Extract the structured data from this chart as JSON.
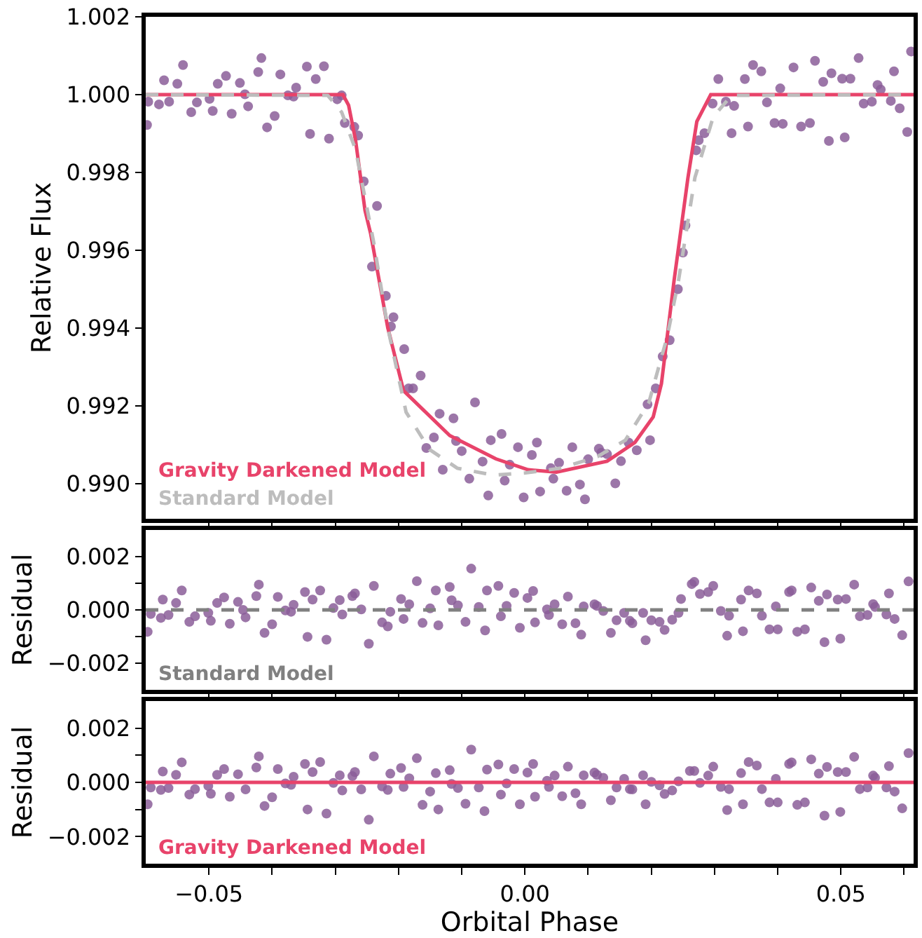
{
  "chart_data": [
    {
      "type": "scatter",
      "ylabel": "Relative Flux",
      "xlim": [
        -0.06,
        0.0615
      ],
      "ylim": [
        0.9891,
        1.002
      ],
      "xticks": [
        {
          "value": -0.05,
          "label": null
        },
        {
          "value": -0.04,
          "label": null
        },
        {
          "value": -0.03,
          "label": null
        },
        {
          "value": -0.02,
          "label": null
        },
        {
          "value": -0.01,
          "label": null
        },
        {
          "value": 0,
          "label": null
        },
        {
          "value": 0.01,
          "label": null
        },
        {
          "value": 0.02,
          "label": null
        },
        {
          "value": 0.03,
          "label": null
        },
        {
          "value": 0.04,
          "label": null
        },
        {
          "value": 0.05,
          "label": null
        },
        {
          "value": 0.06,
          "label": null
        }
      ],
      "yticks": [
        {
          "value": 0.99,
          "label": "0.990"
        },
        {
          "value": 0.992,
          "label": "0.992"
        },
        {
          "value": 0.994,
          "label": "0.994"
        },
        {
          "value": 0.996,
          "label": "0.996"
        },
        {
          "value": 0.998,
          "label": "0.998"
        },
        {
          "value": 1.0,
          "label": "1.000"
        },
        {
          "value": 1.002,
          "label": "1.002"
        }
      ],
      "tick_labels": "y",
      "legend": "bottom left",
      "grid": false,
      "series": [
        {
          "marker": "circle",
          "color": "#8b5e99",
          "x": [
            -0.0598,
            -0.0596,
            -0.0579,
            -0.0571,
            -0.0563,
            -0.055,
            -0.0541,
            -0.0528,
            -0.0519,
            -0.0499,
            -0.0494,
            -0.0486,
            -0.0473,
            -0.0464,
            -0.0451,
            -0.0443,
            -0.0438,
            -0.0422,
            -0.0417,
            -0.0408,
            -0.0396,
            -0.0387,
            -0.0375,
            -0.0366,
            -0.0362,
            -0.0345,
            -0.034,
            -0.0331,
            -0.0318,
            -0.031,
            -0.0297,
            -0.029,
            -0.0285,
            -0.027,
            -0.0264,
            -0.0255,
            -0.0234,
            -0.0242,
            -0.022,
            -0.0208,
            -0.0212,
            -0.0191,
            -0.0184,
            -0.0177,
            -0.0165,
            -0.0156,
            -0.0144,
            -0.0135,
            -0.013,
            -0.0113,
            -0.0109,
            -0.01,
            -0.0088,
            -0.0079,
            -0.0067,
            -0.0058,
            -0.0054,
            -0.0037,
            -0.0032,
            -0.0024,
            -0.0011,
            -0.0002,
            0.0011,
            0.0019,
            0.0024,
            0.0041,
            0.0045,
            0.0054,
            0.0066,
            0.0075,
            0.0087,
            0.0095,
            0.01,
            0.0117,
            0.0121,
            0.013,
            0.0143,
            0.0152,
            0.0164,
            0.0177,
            0.0198,
            0.0194,
            0.0207,
            0.0218,
            0.0229,
            0.0242,
            0.025,
            0.0254,
            0.0271,
            0.0275,
            0.0284,
            0.0297,
            0.0306,
            0.0318,
            0.0327,
            0.0331,
            0.0348,
            0.0353,
            0.0361,
            0.0374,
            0.0383,
            0.0395,
            0.0404,
            0.0408,
            0.0425,
            0.0437,
            0.0451,
            0.0459,
            0.0472,
            0.0481,
            0.0485,
            0.0502,
            0.0506,
            0.0515,
            0.0528,
            0.0536,
            0.0549,
            0.0558,
            0.0563,
            0.0579,
            0.0584,
            0.0593,
            0.0605,
            0.0611
          ],
          "values": [
            0.99922,
            0.99982,
            0.99975,
            1.00037,
            0.99982,
            1.00028,
            1.00076,
            0.99955,
            0.9998,
            0.99989,
            0.99958,
            1.00028,
            1.00048,
            0.99951,
            1.0003,
            1.00001,
            0.9997,
            1.00058,
            1.00094,
            0.99916,
            0.99945,
            1.00052,
            0.99998,
            0.99995,
            1.00018,
            1.00072,
            0.99899,
            1.0004,
            1.00073,
            0.99887,
            0.99988,
            0.99998,
            0.99927,
            0.99917,
            0.99895,
            0.99777,
            0.99714,
            0.99558,
            0.99483,
            0.99428,
            0.99404,
            0.99346,
            0.99245,
            0.99245,
            0.99278,
            0.99092,
            0.99119,
            0.9918,
            0.99036,
            0.99168,
            0.9911,
            0.99084,
            0.99013,
            0.99209,
            0.99057,
            0.9897,
            0.99112,
            0.99128,
            0.99008,
            0.99049,
            0.99094,
            0.98965,
            0.99074,
            0.99106,
            0.9898,
            0.9904,
            0.99013,
            0.99054,
            0.98982,
            0.99094,
            0.98998,
            0.9896,
            0.99063,
            0.9909,
            0.9908,
            0.99076,
            0.99001,
            0.99058,
            0.99106,
            0.99086,
            0.99112,
            0.99204,
            0.99245,
            0.99327,
            0.99369,
            0.995,
            0.99594,
            0.99664,
            0.99857,
            0.99883,
            0.99901,
            0.99977,
            1.0004,
            0.99982,
            0.99901,
            0.99971,
            1.0004,
            0.99918,
            1.00076,
            1.0006,
            0.9998,
            0.99927,
            1.00016,
            0.99925,
            1.0007,
            0.99918,
            0.99927,
            1.00087,
            1.00033,
            0.99881,
            1.00055,
            1.00041,
            0.9989,
            1.00041,
            1.00094,
            0.99977,
            0.99982,
            1.00025,
            1.00013,
            0.99984,
            1.0006,
            0.99965,
            0.99904,
            1.00111
          ]
        },
        {
          "type": "line",
          "name": "Gravity Darkened Model",
          "color": "#e8436a",
          "line_style": "solid",
          "x": [
            -0.06,
            -0.0288,
            -0.0279,
            -0.0268,
            -0.0253,
            -0.0244,
            -0.0217,
            -0.0192,
            -0.0119,
            -0.0046,
            0.0005,
            0.005,
            0.013,
            0.0174,
            0.0203,
            0.0216,
            0.0236,
            0.0258,
            0.0272,
            0.0294,
            0.0615
          ],
          "values": [
            1.0,
            1.0,
            0.99973,
            0.99883,
            0.99702,
            0.99642,
            0.99401,
            0.99239,
            0.99124,
            0.99064,
            0.99036,
            0.9903,
            0.99058,
            0.99106,
            0.99172,
            0.99257,
            0.99522,
            0.99787,
            0.99931,
            1.0,
            1.0
          ]
        },
        {
          "type": "line",
          "name": "Standard Model",
          "color": "#bdbdbd",
          "line_style": "dashed",
          "x": [
            -0.06,
            -0.0312,
            -0.029,
            -0.0268,
            -0.0239,
            -0.0217,
            -0.0188,
            -0.0151,
            -0.0107,
            -0.0049,
            0.0001,
            0.0057,
            0.0115,
            0.0159,
            0.0196,
            0.0225,
            0.0243,
            0.0269,
            0.0298,
            0.0327,
            0.0615
          ],
          "values": [
            1.0,
            0.99998,
            0.99955,
            0.99859,
            0.99618,
            0.99401,
            0.99184,
            0.99088,
            0.9904,
            0.99022,
            0.99028,
            0.9904,
            0.9907,
            0.99112,
            0.99208,
            0.99377,
            0.99522,
            0.99787,
            0.99943,
            0.99998,
            1.0
          ]
        }
      ]
    },
    {
      "type": "scatter",
      "ylabel": "Residual",
      "xlim": [
        -0.06,
        0.0615
      ],
      "ylim": [
        -0.003,
        0.003
      ],
      "xticks": [
        {
          "value": -0.05,
          "label": null
        },
        {
          "value": -0.04,
          "label": null
        },
        {
          "value": -0.03,
          "label": null
        },
        {
          "value": -0.02,
          "label": null
        },
        {
          "value": -0.01,
          "label": null
        },
        {
          "value": 0,
          "label": null
        },
        {
          "value": 0.01,
          "label": null
        },
        {
          "value": 0.02,
          "label": null
        },
        {
          "value": 0.03,
          "label": null
        },
        {
          "value": 0.04,
          "label": null
        },
        {
          "value": 0.05,
          "label": null
        },
        {
          "value": 0.06,
          "label": null
        }
      ],
      "yticks": [
        {
          "value": -0.002,
          "label": "−0.002"
        },
        {
          "value": -0.001,
          "label": null
        },
        {
          "value": 0,
          "label": "0.000"
        },
        {
          "value": 0.001,
          "label": null
        },
        {
          "value": 0.002,
          "label": "0.002"
        }
      ],
      "tick_labels": "y",
      "legend": "bottom left",
      "grid": false,
      "series": [
        {
          "marker": "circle",
          "color": "#8b5e99",
          "x": [
            -0.0597,
            -0.0592,
            -0.0576,
            -0.0573,
            -0.0564,
            -0.0552,
            -0.0543,
            -0.0531,
            -0.0522,
            -0.0501,
            -0.0497,
            -0.0487,
            -0.0476,
            -0.0467,
            -0.0454,
            -0.0446,
            -0.0442,
            -0.0425,
            -0.0421,
            -0.0412,
            -0.04,
            -0.0391,
            -0.0379,
            -0.037,
            -0.0366,
            -0.0348,
            -0.0344,
            -0.0336,
            -0.0324,
            -0.0314,
            -0.0303,
            -0.0293,
            -0.0289,
            -0.0273,
            -0.0269,
            -0.0259,
            -0.0247,
            -0.0239,
            -0.0226,
            -0.0217,
            -0.0213,
            -0.0196,
            -0.0192,
            -0.0183,
            -0.0171,
            -0.0162,
            -0.015,
            -0.0141,
            -0.0137,
            -0.0119,
            -0.0116,
            -0.0106,
            -0.0094,
            -0.0085,
            -0.0073,
            -0.0063,
            -0.006,
            -0.0042,
            -0.0038,
            -0.0029,
            -0.0017,
            -0.0008,
            0.0004,
            0.0013,
            0.0016,
            0.0035,
            0.0038,
            0.0047,
            0.0059,
            0.0068,
            0.008,
            0.0089,
            0.0093,
            0.011,
            0.0114,
            0.0124,
            0.0136,
            0.0145,
            0.0157,
            0.0166,
            0.017,
            0.0187,
            0.0191,
            0.02,
            0.0213,
            0.0221,
            0.0233,
            0.0243,
            0.0247,
            0.0264,
            0.0268,
            0.0277,
            0.029,
            0.0298,
            0.031,
            0.0323,
            0.032,
            0.0342,
            0.0345,
            0.0354,
            0.0367,
            0.0375,
            0.0387,
            0.0397,
            0.04,
            0.0418,
            0.0422,
            0.0431,
            0.0443,
            0.0453,
            0.0465,
            0.0474,
            0.0478,
            0.0495,
            0.0499,
            0.0508,
            0.0521,
            0.053,
            0.0542,
            0.0551,
            0.0554,
            0.0572,
            0.0576,
            0.0585,
            0.0597,
            0.0607
          ],
          "values": [
            -0.00082,
            -0.00015,
            -0.0003,
            0.00039,
            -0.00019,
            0.00026,
            0.00073,
            -0.00045,
            -0.00024,
            -0.00011,
            -0.00041,
            0.00026,
            0.00047,
            -0.00052,
            0.0003,
            0.0,
            -0.00028,
            0.00052,
            0.00095,
            -0.00086,
            -0.00054,
            0.00049,
            -2e-05,
            -7e-05,
            0.00019,
            0.00067,
            -0.00101,
            0.00039,
            0.00073,
            -0.00112,
            7e-05,
            0.00037,
            -0.00017,
            0.00052,
            0.00062,
            2e-05,
            -0.00127,
            0.0009,
            -0.00047,
            -0.00062,
            -7e-05,
            0.00041,
            -0.00034,
            0.00021,
            0.00108,
            -0.00049,
            6e-05,
            0.00073,
            -0.00058,
            0.00086,
            0.00036,
            0.00017,
            -0.00045,
            0.00155,
            0.00011,
            -0.00077,
            0.00073,
            0.0009,
            -0.00024,
            0.00015,
            0.00064,
            -0.00067,
            0.00045,
            0.00071,
            -0.00047,
            2e-05,
            -0.00019,
            0.00021,
            -0.00054,
            0.0005,
            -0.0005,
            -0.00093,
            0.00013,
            0.00021,
            0.00015,
            -4e-05,
            -0.00086,
            -0.00039,
            -0.00011,
            -0.00041,
            -0.0005,
            -0.00011,
            -0.00114,
            -0.00039,
            -0.00045,
            -0.00075,
            -0.00037,
            -0.00011,
            0.00041,
            0.00097,
            0.00105,
            0.0006,
            0.00067,
            0.0009,
            -4e-05,
            -0.00022,
            -0.00097,
            0.00039,
            -0.0008,
            0.00073,
            0.00062,
            -0.00022,
            -0.00073,
            0.00013,
            -0.00073,
            0.00067,
            0.00073,
            -0.00082,
            -0.00073,
            0.00084,
            0.00034,
            -0.00121,
            0.00058,
            0.00039,
            -0.00108,
            0.00041,
            0.00095,
            -0.00024,
            -0.00019,
            0.00022,
            0.00011,
            -0.00017,
            0.00062,
            -0.00034,
            -0.00095,
            0.00107
          ]
        },
        {
          "type": "line",
          "name": "Standard Model",
          "color": "#808080",
          "line_style": "dashed",
          "x": [
            -0.06,
            0.0615
          ],
          "values": [
            0,
            0
          ]
        }
      ]
    },
    {
      "type": "scatter",
      "ylabel": "Residual",
      "xlabel": "Orbital Phase",
      "xlim": [
        -0.06,
        0.0615
      ],
      "ylim": [
        -0.003,
        0.003
      ],
      "xticks": [
        {
          "value": -0.05,
          "label": "−0.05"
        },
        {
          "value": -0.04,
          "label": null
        },
        {
          "value": -0.03,
          "label": null
        },
        {
          "value": -0.02,
          "label": null
        },
        {
          "value": -0.01,
          "label": null
        },
        {
          "value": 0,
          "label": "0.00"
        },
        {
          "value": 0.01,
          "label": null
        },
        {
          "value": 0.02,
          "label": null
        },
        {
          "value": 0.03,
          "label": null
        },
        {
          "value": 0.04,
          "label": null
        },
        {
          "value": 0.05,
          "label": "0.05"
        },
        {
          "value": 0.06,
          "label": null
        }
      ],
      "yticks": [
        {
          "value": -0.002,
          "label": "−0.002"
        },
        {
          "value": -0.001,
          "label": null
        },
        {
          "value": 0,
          "label": "0.000"
        },
        {
          "value": 0.001,
          "label": null
        },
        {
          "value": 0.002,
          "label": "0.002"
        }
      ],
      "legend": "bottom left",
      "grid": false,
      "series": [
        {
          "marker": "circle",
          "color": "#8b5e99",
          "x": [
            -0.0597,
            -0.0592,
            -0.0576,
            -0.0573,
            -0.0564,
            -0.0552,
            -0.0543,
            -0.0531,
            -0.0522,
            -0.0501,
            -0.0497,
            -0.0487,
            -0.0476,
            -0.0467,
            -0.0454,
            -0.0442,
            -0.0425,
            -0.0421,
            -0.0412,
            -0.04,
            -0.0391,
            -0.0379,
            -0.037,
            -0.0366,
            -0.0348,
            -0.0344,
            -0.0336,
            -0.0324,
            -0.0314,
            -0.0303,
            -0.0293,
            -0.0289,
            -0.0273,
            -0.0269,
            -0.0259,
            -0.0247,
            -0.0239,
            -0.0226,
            -0.0217,
            -0.0213,
            -0.0196,
            -0.0192,
            -0.0183,
            -0.0171,
            -0.0162,
            -0.015,
            -0.0141,
            -0.0137,
            -0.0119,
            -0.0116,
            -0.0106,
            -0.0094,
            -0.0085,
            -0.0073,
            -0.0064,
            -0.006,
            -0.0042,
            -0.0038,
            -0.0029,
            -0.0017,
            -0.0008,
            0.0004,
            0.0013,
            0.0016,
            0.0035,
            0.0038,
            0.0047,
            0.0059,
            0.0068,
            0.008,
            0.0089,
            0.0093,
            0.011,
            0.0114,
            0.0124,
            0.0136,
            0.0145,
            0.0157,
            0.0166,
            0.017,
            0.0187,
            0.0191,
            0.02,
            0.0213,
            0.0221,
            0.0233,
            0.0243,
            0.0261,
            0.0268,
            0.0277,
            0.029,
            0.0298,
            0.031,
            0.0323,
            0.032,
            0.0342,
            0.0345,
            0.0354,
            0.0367,
            0.0375,
            0.0387,
            0.0397,
            0.04,
            0.0418,
            0.0422,
            0.0431,
            0.0443,
            0.0453,
            0.0465,
            0.0474,
            0.0478,
            0.0495,
            0.0499,
            0.0508,
            0.0521,
            0.053,
            0.0542,
            0.0551,
            0.0554,
            0.0572,
            0.0576,
            0.0585,
            0.0597,
            0.0607
          ],
          "values": [
            -0.00081,
            -0.00019,
            -0.00028,
            0.0004,
            -0.00021,
            0.00028,
            0.00074,
            -0.00045,
            -0.00025,
            -0.00013,
            -0.00042,
            0.00028,
            0.00049,
            -0.00053,
            0.0003,
            -0.00026,
            0.00055,
            0.00096,
            -0.00087,
            -0.00055,
            0.00049,
            -4e-05,
            -9e-05,
            0.00021,
            0.00068,
            -0.001,
            0.00038,
            0.00075,
            -0.00115,
            -2e-05,
            0.00026,
            -0.0003,
            0.00023,
            0.00038,
            -0.00026,
            -0.00138,
            0.00096,
            -0.00015,
            -0.00028,
            0.00032,
            0.00053,
            -0.00017,
            0.00015,
            0.00089,
            -0.00083,
            -0.00034,
            0.00034,
            -0.001,
            0.00045,
            -6e-05,
            -0.00021,
            -0.00079,
            0.00121,
            -0.00019,
            -0.00106,
            0.00047,
            0.00066,
            -0.00045,
            -4e-05,
            0.00049,
            -0.00081,
            0.00036,
            0.00068,
            -0.00053,
            6e-05,
            -0.00017,
            0.00025,
            -0.00051,
            0.00058,
            -0.0004,
            -0.00081,
            0.00026,
            0.00036,
            0.00028,
            0.00017,
            -0.00066,
            -0.00019,
            0.00013,
            -0.00025,
            -0.00026,
            0.00026,
            -0.00081,
            2e-05,
            -0.00011,
            -0.00043,
            -0.0003,
            4e-05,
            0.00042,
            0.00042,
            -2e-05,
            0.00025,
            0.00058,
            -0.00017,
            -0.00025,
            -0.00102,
            0.00034,
            -0.00081,
            0.00075,
            0.00062,
            -0.00025,
            -0.00074,
            0.00013,
            -0.00074,
            0.00068,
            0.00074,
            -0.00083,
            -0.00074,
            0.00085,
            0.00032,
            -0.00123,
            0.00057,
            0.00038,
            -0.00109,
            0.00038,
            0.00094,
            -0.00025,
            -0.00019,
            0.00025,
            0.00017,
            -0.00019,
            0.0006,
            -0.00034,
            -0.00096,
            0.00108
          ]
        },
        {
          "type": "line",
          "name": "Gravity Darkened Model",
          "color": "#e8436a",
          "line_style": "solid",
          "x": [
            -0.06,
            0.0615
          ],
          "values": [
            0,
            0
          ]
        }
      ]
    }
  ]
}
